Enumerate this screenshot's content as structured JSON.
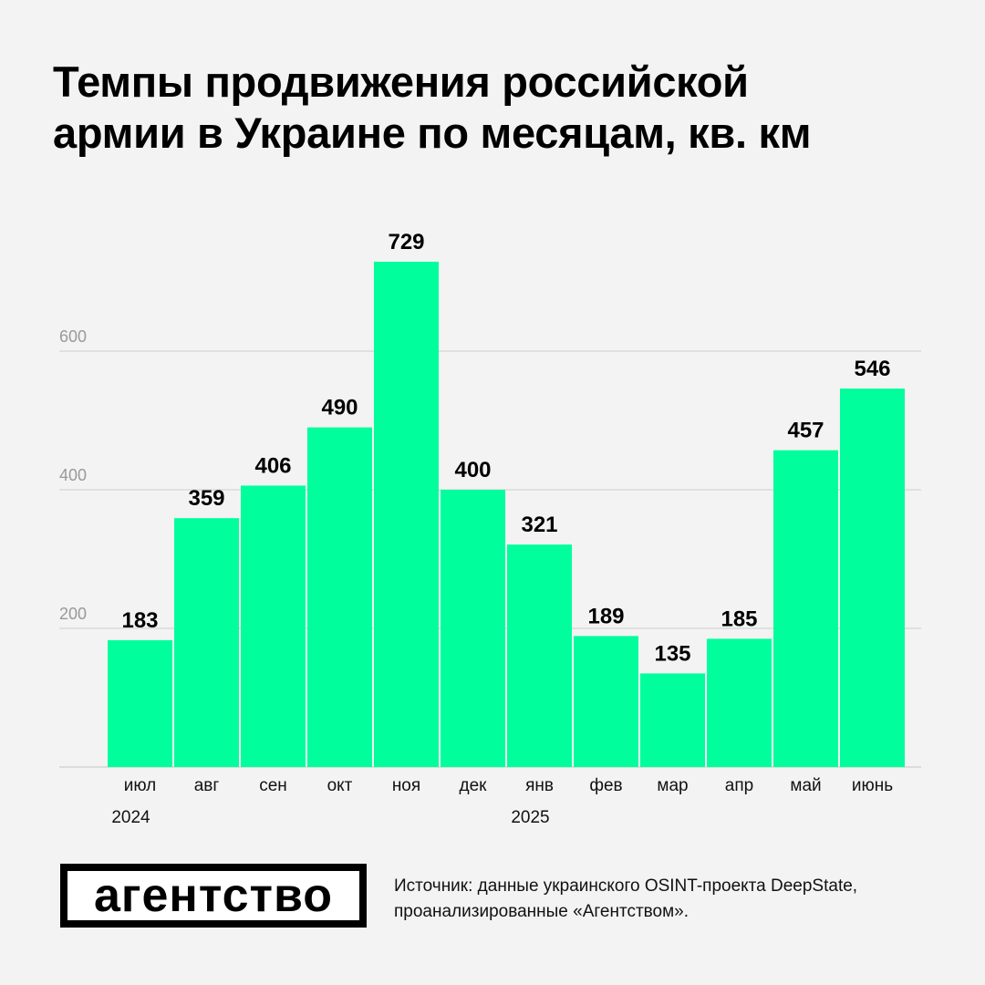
{
  "title_line1": "Темпы продвижения российской",
  "title_line2": "армии в Украине по месяцам, кв. км",
  "chart_data": {
    "type": "bar",
    "title": "Темпы продвижения российской армии в Украине по месяцам, кв. км",
    "categories": [
      "июл",
      "авг",
      "сен",
      "окт",
      "ноя",
      "дек",
      "янв",
      "фев",
      "мар",
      "апр",
      "май",
      "июнь"
    ],
    "values": [
      183,
      359,
      406,
      490,
      729,
      400,
      321,
      189,
      135,
      185,
      457,
      546
    ],
    "year_labels": [
      {
        "label": "2024",
        "category_index": 0
      },
      {
        "label": "2025",
        "category_index": 6
      }
    ],
    "yticks": [
      200,
      400,
      600
    ],
    "ylim": [
      0,
      730
    ],
    "grid": true,
    "xlabel": "",
    "ylabel": "",
    "bar_color": "#00ff9c"
  },
  "logo_text": "агентство",
  "source_line1": "Источник: данные украинского OSINT-проекта DeepState,",
  "source_line2": "проанализированные «Агентством»."
}
